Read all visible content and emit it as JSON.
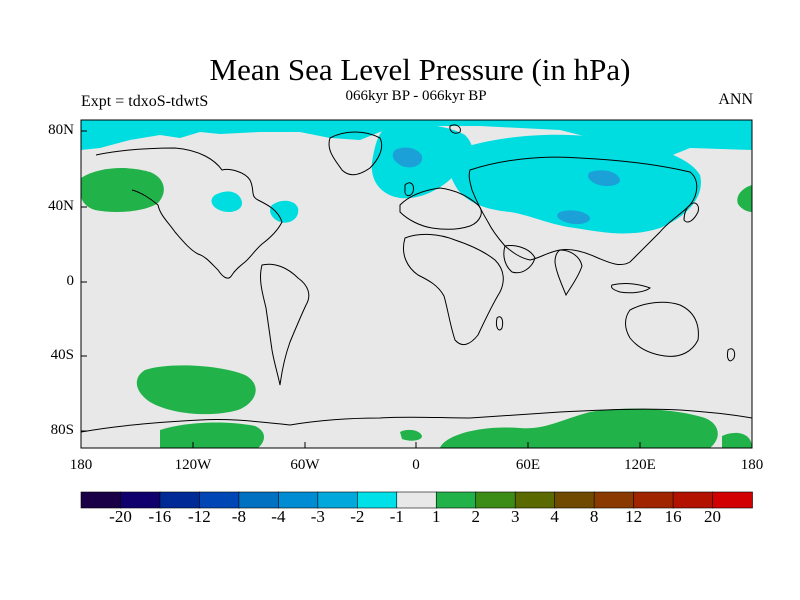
{
  "title": "Mean Sea Level Pressure (in hPa)",
  "subtitle": "066kyr BP - 066kyr BP",
  "experiment": "Expt = tdxoS-tdwtS",
  "season": "ANN",
  "lat_labels": [
    "80N",
    "40N",
    "0",
    "40S",
    "80S"
  ],
  "lon_labels": [
    "180",
    "120W",
    "60W",
    "0",
    "60E",
    "120E",
    "180"
  ],
  "colorbar": {
    "colors": [
      "#1a0046",
      "#10006e",
      "#002a96",
      "#0046b4",
      "#0070c0",
      "#008cd2",
      "#00a8dc",
      "#00e0e8",
      "#e8e8e8",
      "#22b24a",
      "#3c8c18",
      "#5a6a00",
      "#704a00",
      "#8a3a00",
      "#a02400",
      "#b41200",
      "#d20000"
    ],
    "labels": [
      "-20",
      "-16",
      "-12",
      "-8",
      "-4",
      "-3",
      "-2",
      "-1",
      "1",
      "2",
      "3",
      "4",
      "8",
      "12",
      "16",
      "20"
    ]
  },
  "colors": {
    "ocean_fill": "#e8e8e8",
    "negative_fill": "#00dde0",
    "strong_negative_fill": "#1ca0d8",
    "positive_fill": "#22b24a"
  }
}
